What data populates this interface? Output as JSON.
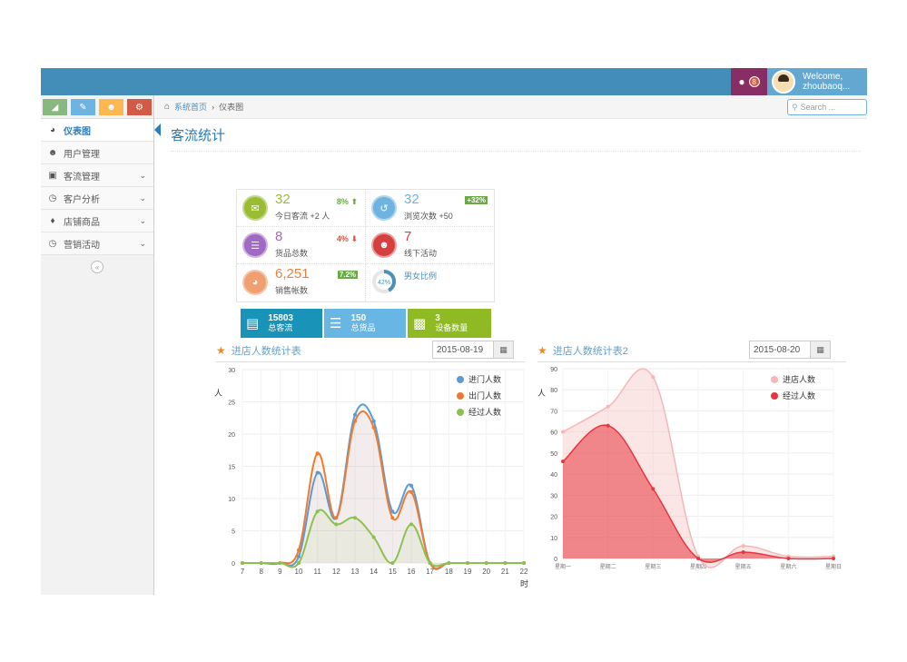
{
  "notifications": {
    "count": "8"
  },
  "user": {
    "welcome": "Welcome,",
    "name": "zhoubaoq..."
  },
  "breadcrumbs": {
    "home": "系统首页",
    "current": "仪表图"
  },
  "search": {
    "placeholder": "Search ..."
  },
  "sidebar": {
    "shortcuts": [
      {
        "icon": "signal-icon",
        "color": "#87b87f"
      },
      {
        "icon": "pencil-icon",
        "color": "#6fb3e0"
      },
      {
        "icon": "users-icon",
        "color": "#ffb752"
      },
      {
        "icon": "cogs-icon",
        "color": "#d15b47"
      }
    ],
    "items": [
      {
        "label": "仪表图",
        "icon": "dashboard-icon",
        "active": true
      },
      {
        "label": "用户管理",
        "icon": "group-icon"
      },
      {
        "label": "客流管理",
        "icon": "picture-icon",
        "has_submenu": true
      },
      {
        "label": "客户分析",
        "icon": "clock-icon",
        "has_submenu": true
      },
      {
        "label": "店铺商品",
        "icon": "tags-icon",
        "has_submenu": true
      },
      {
        "label": "营销活动",
        "icon": "clock-icon",
        "has_submenu": true
      }
    ]
  },
  "page": {
    "title": "客流统计"
  },
  "infoboxes": [
    {
      "value": "32",
      "label": "今日客流 +2 人",
      "stat": "8%",
      "stat_trend": "up",
      "color": "#9abc32",
      "icon": "comments-icon"
    },
    {
      "value": "32",
      "label": "浏览次数 +50",
      "stat": "+32%",
      "color": "#6fb3e0",
      "icon": "share-icon"
    },
    {
      "value": "8",
      "label": "货品总数",
      "stat": "4%",
      "stat_trend": "down",
      "color": "#a069c3",
      "icon": "database-icon"
    },
    {
      "value": "7",
      "label": "线下活动",
      "color": "#d53f40",
      "icon": "users-icon"
    },
    {
      "value": "6,251",
      "label": "销售帐数",
      "stat": "7.2%",
      "color": "#e8b110",
      "icon": "pie-chart-icon"
    },
    {
      "value": "42%",
      "label": "男女比例",
      "color": "#4c8fbd",
      "icon": "gender-pie"
    }
  ],
  "smallboxes": [
    {
      "number": "15803",
      "label": "总客流",
      "color": "#1a93b8",
      "icon": "monitor-icon"
    },
    {
      "number": "150",
      "label": "总货品",
      "color": "#67b6e3",
      "icon": "database-icon"
    },
    {
      "number": "3",
      "label": "设备数量",
      "color": "#8fba24",
      "icon": "desktop-icon"
    }
  ],
  "chart_data": [
    {
      "type": "area",
      "title": "进店人数统计表",
      "date": "2015-08-19",
      "ylabel": "人",
      "xlabel": "时",
      "x": [
        7,
        8,
        9,
        10,
        11,
        12,
        13,
        14,
        15,
        16,
        17,
        18,
        19,
        20,
        21,
        22
      ],
      "ylim": [
        0,
        30
      ],
      "yticks": [
        0,
        5,
        10,
        15,
        20,
        25,
        30
      ],
      "series": [
        {
          "name": "进门人数",
          "color": "#5b9bd5",
          "values": [
            0,
            0,
            0,
            1,
            14,
            7,
            23,
            22,
            8,
            12,
            0,
            0,
            0,
            0,
            0,
            0
          ]
        },
        {
          "name": "出门人数",
          "color": "#f07b30",
          "values": [
            0,
            0,
            0,
            2,
            17,
            7,
            22,
            21,
            7,
            11,
            0,
            0,
            0,
            0,
            0,
            0
          ]
        },
        {
          "name": "经过人数",
          "color": "#8cc152",
          "values": [
            0,
            0,
            0,
            0,
            8,
            6,
            7,
            4,
            0,
            6,
            0,
            0,
            0,
            0,
            0,
            0
          ]
        }
      ]
    },
    {
      "type": "area",
      "title": "进店人数统计表2",
      "date": "2015-08-20",
      "ylabel": "人",
      "categories": [
        "星期一",
        "星期二",
        "星期三",
        "星期四",
        "星期五",
        "星期六",
        "星期日"
      ],
      "ylim": [
        0,
        90
      ],
      "yticks": [
        0,
        10,
        20,
        30,
        40,
        50,
        60,
        70,
        80,
        90
      ],
      "series": [
        {
          "name": "进店人数",
          "color": "#f4b6b6",
          "values": [
            60,
            72,
            86,
            1,
            6,
            1,
            1
          ]
        },
        {
          "name": "经过人数",
          "color": "#e8353e",
          "values": [
            46,
            63,
            33,
            0,
            3,
            0,
            0
          ]
        }
      ]
    }
  ]
}
